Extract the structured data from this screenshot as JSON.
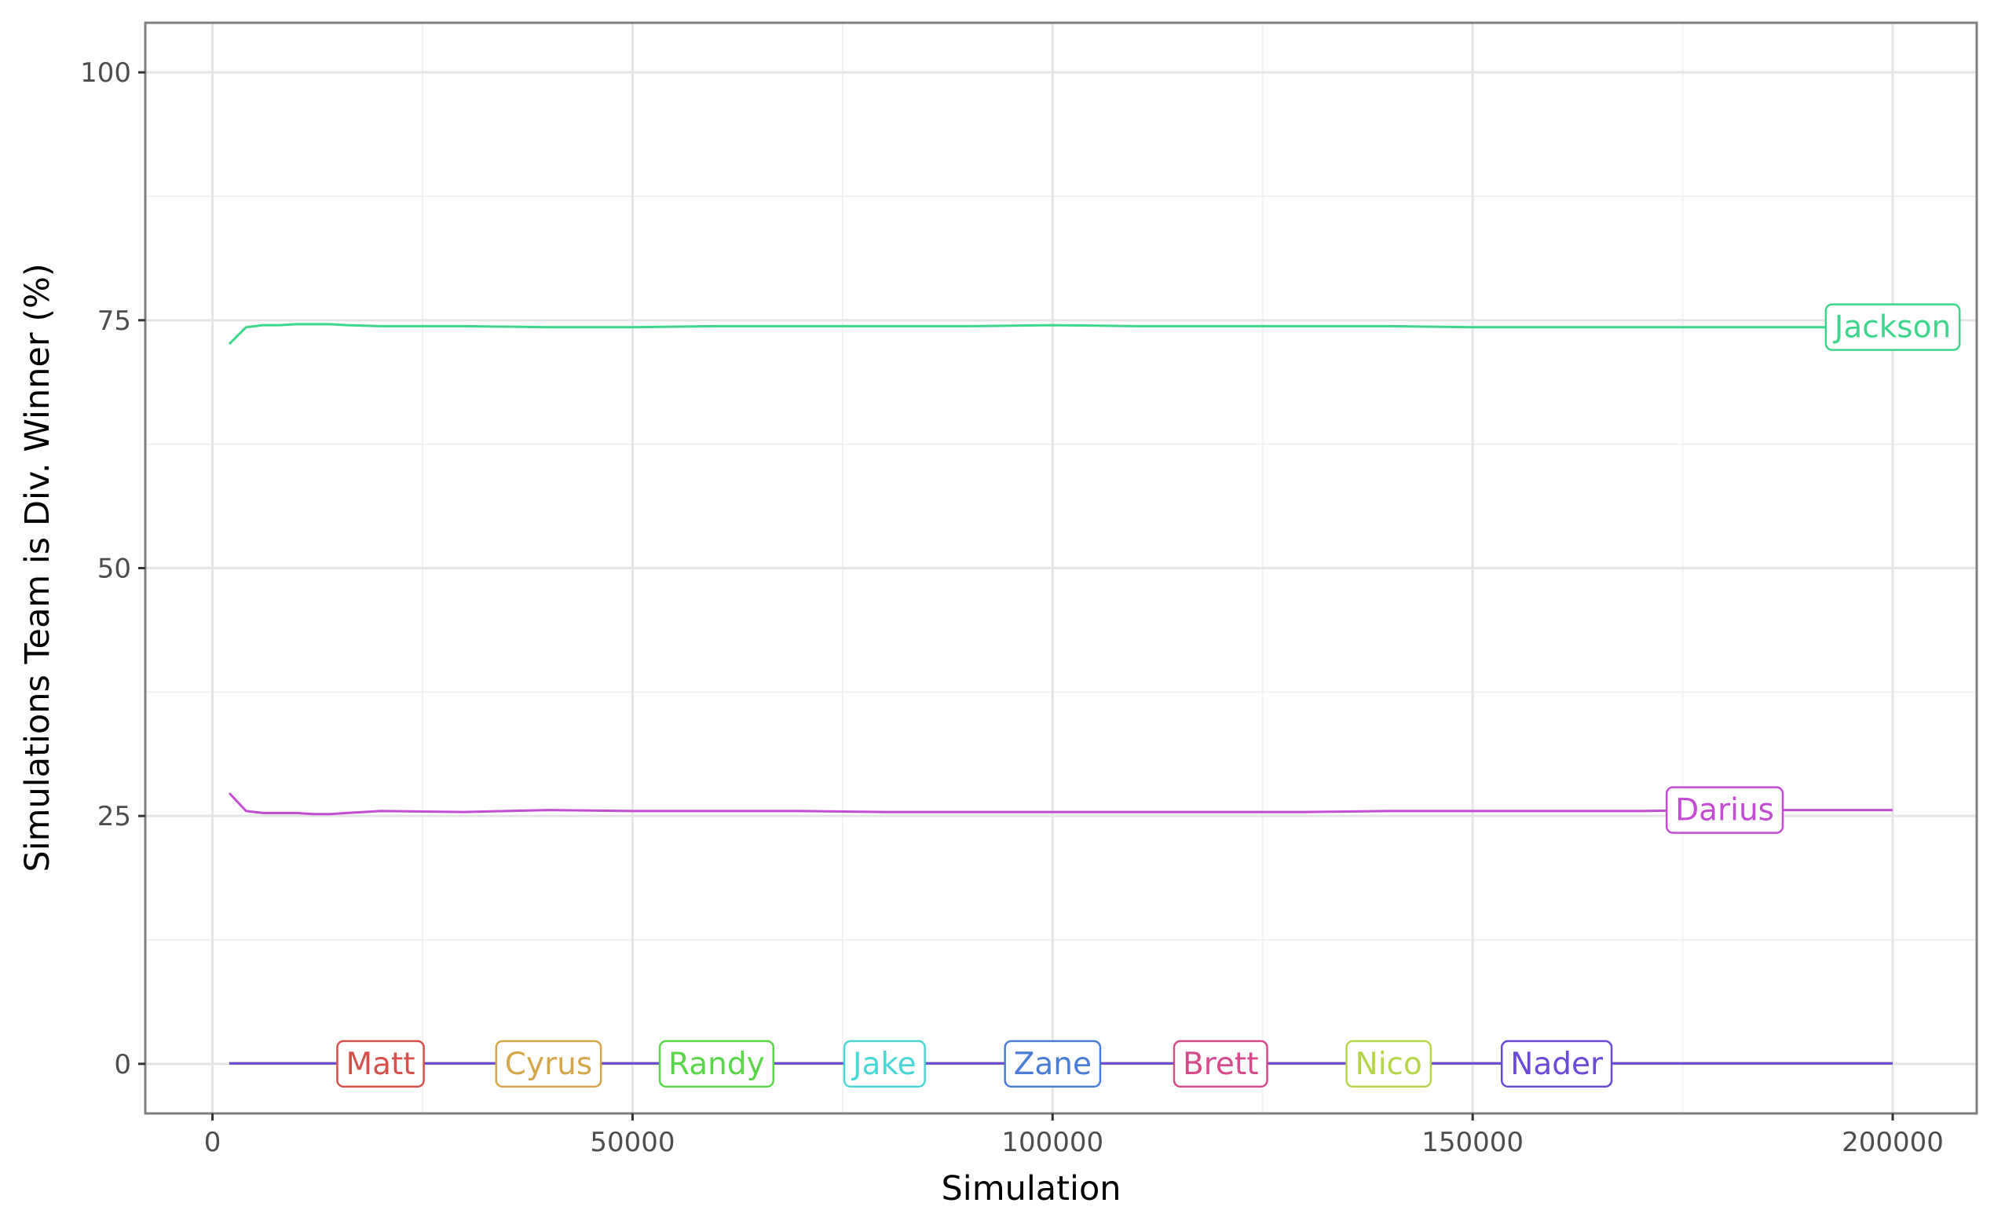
{
  "chart_data": {
    "type": "line",
    "title": "",
    "xlabel": "Simulation",
    "ylabel": "Simulations Team is Div. Winner (%)",
    "xlim": [
      -8000,
      210000
    ],
    "ylim": [
      -5,
      105
    ],
    "x_ticks": [
      {
        "value": 0,
        "label": "0"
      },
      {
        "value": 50000,
        "label": "50000"
      },
      {
        "value": 100000,
        "label": "100000"
      },
      {
        "value": 150000,
        "label": "150000"
      },
      {
        "value": 200000,
        "label": "200000"
      }
    ],
    "y_ticks": [
      {
        "value": 0,
        "label": "0"
      },
      {
        "value": 25,
        "label": "25"
      },
      {
        "value": 50,
        "label": "50"
      },
      {
        "value": 75,
        "label": "75"
      },
      {
        "value": 100,
        "label": "100"
      }
    ],
    "grid": true,
    "legend": "none (direct labels on lines)",
    "series": [
      {
        "name": "Jackson",
        "color": "#3dd68c",
        "x": [
          2000,
          4000,
          6000,
          8000,
          10000,
          12000,
          14000,
          16000,
          20000,
          30000,
          40000,
          50000,
          60000,
          70000,
          80000,
          90000,
          100000,
          110000,
          120000,
          130000,
          140000,
          150000,
          160000,
          170000,
          180000,
          190000,
          200000
        ],
        "y": [
          72.6,
          74.3,
          74.5,
          74.5,
          74.6,
          74.6,
          74.6,
          74.5,
          74.4,
          74.4,
          74.3,
          74.3,
          74.4,
          74.4,
          74.4,
          74.4,
          74.5,
          74.4,
          74.4,
          74.4,
          74.4,
          74.3,
          74.3,
          74.3,
          74.3,
          74.3,
          74.3
        ],
        "label_x": 200000,
        "label_y": 74.3
      },
      {
        "name": "Darius",
        "color": "#c54ad6",
        "x": [
          2000,
          4000,
          6000,
          8000,
          10000,
          12000,
          14000,
          16000,
          20000,
          30000,
          40000,
          50000,
          60000,
          70000,
          80000,
          90000,
          100000,
          110000,
          120000,
          130000,
          140000,
          150000,
          160000,
          170000,
          180000,
          190000,
          200000
        ],
        "y": [
          27.3,
          25.5,
          25.3,
          25.3,
          25.3,
          25.2,
          25.2,
          25.3,
          25.5,
          25.4,
          25.6,
          25.5,
          25.5,
          25.5,
          25.4,
          25.4,
          25.4,
          25.4,
          25.4,
          25.4,
          25.5,
          25.5,
          25.5,
          25.5,
          25.6,
          25.6,
          25.6
        ],
        "label_x": 180000,
        "label_y": 25.6
      },
      {
        "name": "Matt",
        "color": "#d6504a",
        "x": [
          2000,
          200000
        ],
        "y": [
          0.05,
          0.05
        ],
        "label_x": 20000,
        "label_y": 0
      },
      {
        "name": "Cyrus",
        "color": "#d6a64a",
        "x": [
          2000,
          200000
        ],
        "y": [
          0.05,
          0.05
        ],
        "label_x": 40000,
        "label_y": 0
      },
      {
        "name": "Randy",
        "color": "#5ad64a",
        "x": [
          2000,
          200000
        ],
        "y": [
          0.05,
          0.05
        ],
        "label_x": 60000,
        "label_y": 0
      },
      {
        "name": "Jake",
        "color": "#4ad6d6",
        "x": [
          2000,
          200000
        ],
        "y": [
          0.05,
          0.05
        ],
        "label_x": 80000,
        "label_y": 0
      },
      {
        "name": "Zane",
        "color": "#4a7ed6",
        "x": [
          2000,
          200000
        ],
        "y": [
          0.05,
          0.05
        ],
        "label_x": 100000,
        "label_y": 0
      },
      {
        "name": "Brett",
        "color": "#d64a8c",
        "x": [
          2000,
          200000
        ],
        "y": [
          0.05,
          0.05
        ],
        "label_x": 120000,
        "label_y": 0
      },
      {
        "name": "Nico",
        "color": "#b6d64a",
        "x": [
          2000,
          200000
        ],
        "y": [
          0.05,
          0.05
        ],
        "label_x": 140000,
        "label_y": 0
      },
      {
        "name": "Nader",
        "color": "#6a4ad6",
        "x": [
          2000,
          200000
        ],
        "y": [
          0.05,
          0.05
        ],
        "label_x": 160000,
        "label_y": 0
      }
    ]
  }
}
